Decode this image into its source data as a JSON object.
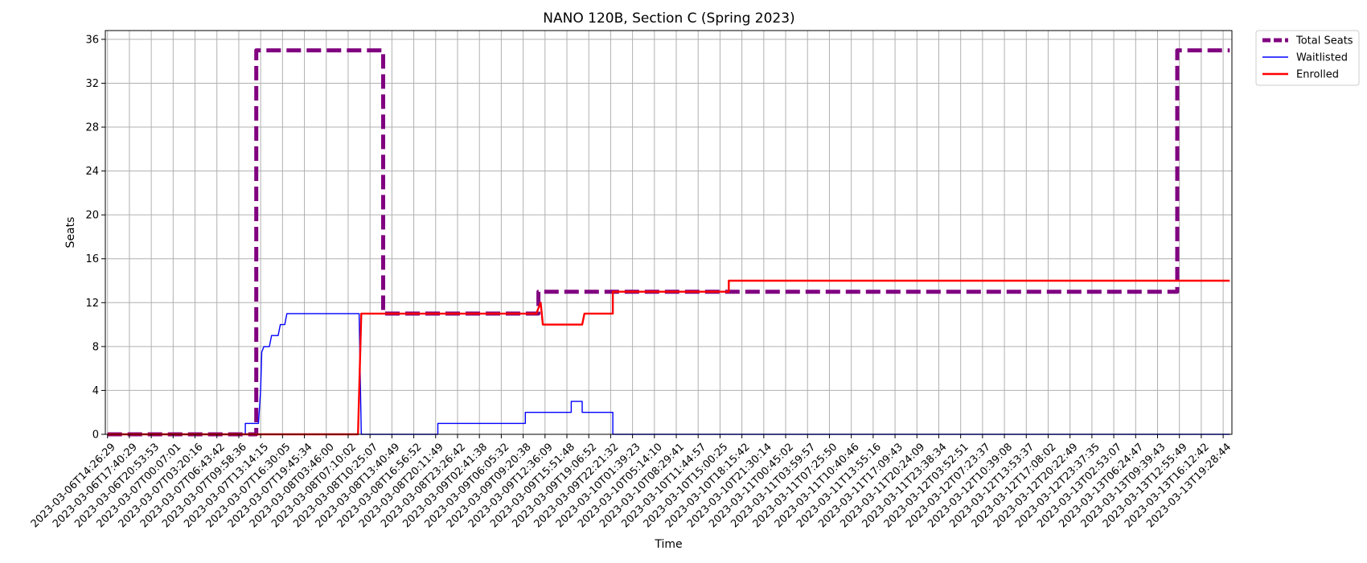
{
  "chart_data": {
    "type": "line",
    "title": "NANO 120B, Section C (Spring 2023)",
    "xlabel": "Time",
    "ylabel": "Seats",
    "ylim": [
      0,
      36.8
    ],
    "yticks": [
      0,
      4,
      8,
      12,
      16,
      20,
      24,
      28,
      32,
      36
    ],
    "grid": true,
    "legend_position": "outside top-right",
    "categories": [
      "2023-03-06T14:26:29",
      "2023-03-06T17:40:29",
      "2023-03-06T20:53:53",
      "2023-03-07T00:07:01",
      "2023-03-07T03:20:16",
      "2023-03-07T06:43:42",
      "2023-03-07T09:58:36",
      "2023-03-07T13:14:15",
      "2023-03-07T16:30:05",
      "2023-03-07T19:45:34",
      "2023-03-08T03:46:00",
      "2023-03-08T07:10:02",
      "2023-03-08T10:25:07",
      "2023-03-08T13:40:49",
      "2023-03-08T16:56:52",
      "2023-03-08T20:11:49",
      "2023-03-08T23:26:42",
      "2023-03-09T02:41:38",
      "2023-03-09T06:05:32",
      "2023-03-09T09:20:38",
      "2023-03-09T12:36:09",
      "2023-03-09T15:51:48",
      "2023-03-09T19:06:52",
      "2023-03-09T22:21:32",
      "2023-03-10T01:39:23",
      "2023-03-10T05:14:10",
      "2023-03-10T08:29:41",
      "2023-03-10T11:44:57",
      "2023-03-10T15:00:25",
      "2023-03-10T18:15:42",
      "2023-03-10T21:30:14",
      "2023-03-11T00:45:02",
      "2023-03-11T03:59:57",
      "2023-03-11T07:25:50",
      "2023-03-11T10:40:46",
      "2023-03-11T13:55:16",
      "2023-03-11T17:09:43",
      "2023-03-11T20:24:09",
      "2023-03-11T23:38:34",
      "2023-03-12T03:52:51",
      "2023-03-12T07:23:37",
      "2023-03-12T10:39:08",
      "2023-03-12T13:53:37",
      "2023-03-12T17:08:02",
      "2023-03-12T20:22:49",
      "2023-03-12T23:37:35",
      "2023-03-13T02:53:07",
      "2023-03-13T06:24:47",
      "2023-03-13T09:39:43",
      "2023-03-13T12:55:49",
      "2023-03-13T16:12:42",
      "2023-03-13T19:28:44"
    ],
    "series": [
      {
        "name": "Total Seats",
        "color": "#800080",
        "style": "dashed-thick",
        "points": [
          [
            0,
            0
          ],
          [
            6.8,
            0
          ],
          [
            6.8,
            35
          ],
          [
            12.6,
            35
          ],
          [
            12.6,
            11
          ],
          [
            19.7,
            11
          ],
          [
            19.7,
            13
          ],
          [
            48.9,
            13
          ],
          [
            48.9,
            35
          ],
          [
            51.3,
            35
          ]
        ]
      },
      {
        "name": "Waitlisted",
        "color": "#0000ff",
        "style": "solid-thin",
        "points": [
          [
            0,
            0
          ],
          [
            6.3,
            0
          ],
          [
            6.3,
            1
          ],
          [
            6.9,
            1
          ],
          [
            7.0,
            4
          ],
          [
            7.05,
            7.5
          ],
          [
            7.15,
            8
          ],
          [
            7.4,
            8
          ],
          [
            7.5,
            9
          ],
          [
            7.8,
            9
          ],
          [
            7.9,
            10
          ],
          [
            8.1,
            10
          ],
          [
            8.2,
            11
          ],
          [
            11.5,
            11
          ],
          [
            11.6,
            0
          ],
          [
            15.1,
            0
          ],
          [
            15.1,
            1
          ],
          [
            19.1,
            1
          ],
          [
            19.1,
            2
          ],
          [
            21.2,
            2
          ],
          [
            21.2,
            3
          ],
          [
            21.7,
            3
          ],
          [
            21.7,
            2
          ],
          [
            23.1,
            2
          ],
          [
            23.1,
            0
          ],
          [
            51.3,
            0
          ]
        ]
      },
      {
        "name": "Enrolled",
        "color": "#ff0000",
        "style": "solid",
        "points": [
          [
            0,
            0
          ],
          [
            11.45,
            0
          ],
          [
            11.6,
            11
          ],
          [
            19.6,
            11
          ],
          [
            19.8,
            12
          ],
          [
            19.9,
            10
          ],
          [
            21.7,
            10
          ],
          [
            21.8,
            11
          ],
          [
            23.1,
            11
          ],
          [
            23.1,
            13
          ],
          [
            28.4,
            13
          ],
          [
            28.4,
            14
          ],
          [
            51.3,
            14
          ]
        ]
      }
    ]
  }
}
